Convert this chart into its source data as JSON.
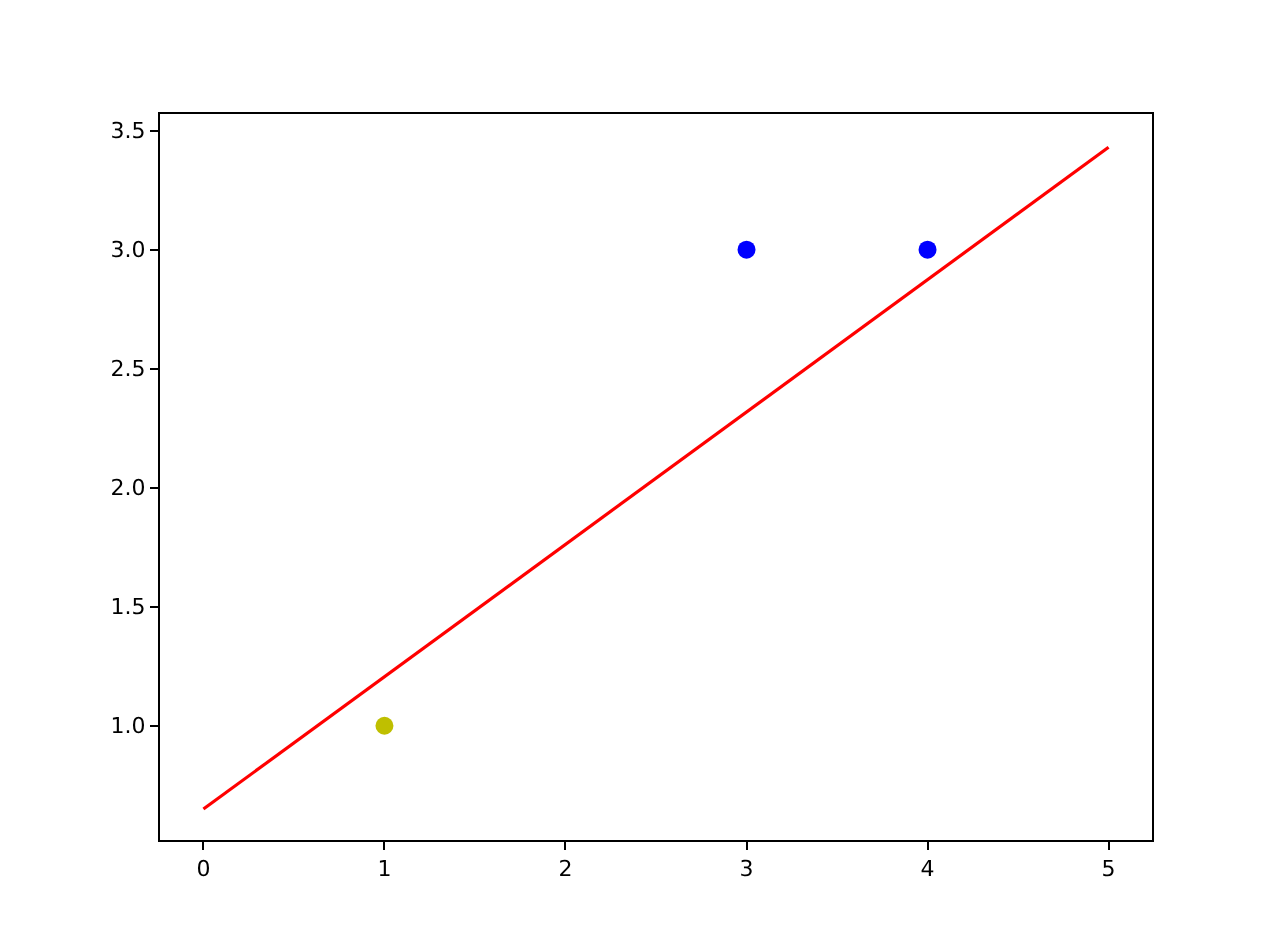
{
  "chart_data": {
    "type": "scatter",
    "series": [
      {
        "color": "#bfbf00",
        "x": [
          1
        ],
        "values": [
          1
        ]
      },
      {
        "color": "#0000ff",
        "x": [
          3,
          4
        ],
        "values": [
          3,
          3
        ]
      },
      {
        "type": "line",
        "color": "#ff0000",
        "x": [
          0,
          5
        ],
        "values": [
          0.65,
          3.43
        ],
        "marker": "none"
      }
    ],
    "xlim": [
      -0.24,
      5.24
    ],
    "ylim": [
      0.52,
      3.57
    ],
    "xticks": [
      0,
      1,
      2,
      3,
      4,
      5
    ],
    "yticks": [
      {
        "value": 1,
        "label": "1.0"
      },
      {
        "value": 1.5,
        "label": "1.5"
      },
      {
        "value": 2,
        "label": "2.0"
      },
      {
        "value": 2.5,
        "label": "2.5"
      },
      {
        "value": 3,
        "label": "3.0"
      },
      {
        "value": 3.5,
        "label": "3.5"
      }
    ],
    "marker": "circle"
  }
}
